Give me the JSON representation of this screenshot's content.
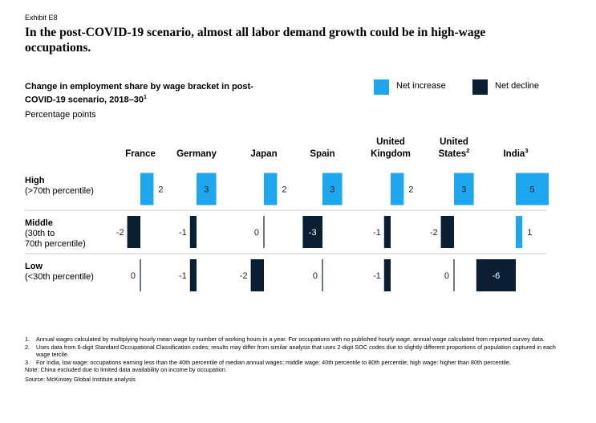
{
  "exhibit": "Exhibit E8",
  "title": "In the post-COVID-19 scenario, almost all labor demand growth could be in high-wage occupations.",
  "subtitle": "Change in employment share by wage bracket in post-COVID-19 scenario, 2018–30",
  "subtitle_note": "1",
  "unit": "Percentage points",
  "legend": {
    "increase": {
      "label": "Net increase",
      "color": "#1ea7ee"
    },
    "decline": {
      "label": "Net decline",
      "color": "#0b1f33"
    }
  },
  "chart_data": {
    "type": "bar",
    "title": "Change in employment share by wage bracket in post-COVID-19 scenario, 2018–30",
    "unit": "Percentage points",
    "columns": [
      {
        "line1": "",
        "line2": "France",
        "sup": ""
      },
      {
        "line1": "",
        "line2": "Germany",
        "sup": ""
      },
      {
        "line1": "",
        "line2": "Japan",
        "sup": ""
      },
      {
        "line1": "",
        "line2": "Spain",
        "sup": ""
      },
      {
        "line1": "United",
        "line2": "Kingdom",
        "sup": ""
      },
      {
        "line1": "United",
        "line2": "States",
        "sup": "2"
      },
      {
        "line1": "",
        "line2": "India",
        "sup": "3"
      }
    ],
    "rows": [
      {
        "label": [
          "High",
          "(>70th percentile)"
        ],
        "values": [
          2,
          3,
          2,
          3,
          2,
          3,
          5
        ]
      },
      {
        "label": [
          "Middle",
          "(30th to",
          "70th percentile)"
        ],
        "values": [
          -2,
          -1,
          0,
          -3,
          -1,
          -2,
          1
        ]
      },
      {
        "label": [
          "Low",
          "(<30th percentile)"
        ],
        "values": [
          0,
          -1,
          -2,
          0,
          -1,
          0,
          -6
        ]
      }
    ],
    "series_colors": {
      "positive": "#1ea7ee",
      "negative": "#0b1f33"
    }
  },
  "footnotes": [
    {
      "num": "1.",
      "text": "Annual wages calculated by multiplying hourly mean wage by number of working hours in a year. For occupations with no published hourly wage, annual wage calculated from reported survey data."
    },
    {
      "num": "2.",
      "text": "Uses data from 6-digit Standard Occupational Classification codes; results may differ from similar analysis that uses 2-digit SOC codes due to slightly different proportions of population captured in each wage tercile."
    },
    {
      "num": "3.",
      "text": "For India, low wage: occupations earning less than the 40th percentile of median annual wages; middle wage: 40th percentile to 80th percentile; high wage: higher than 80th percentile."
    }
  ],
  "note": "Note: China excluded due to limited data availability on income by occupation.",
  "source": "Source: McKinsey Global Institute analysis"
}
